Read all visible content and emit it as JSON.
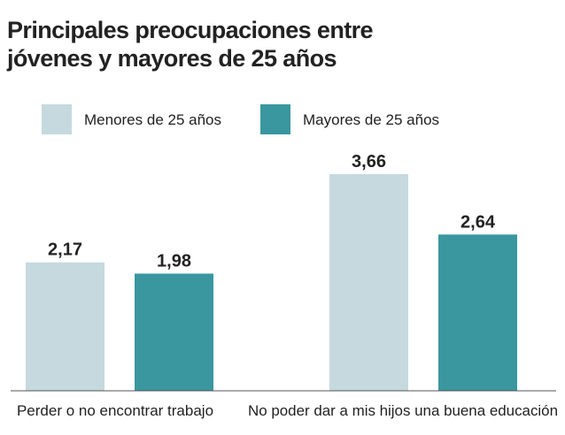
{
  "title_lines": [
    "Principales preocupaciones entre",
    "jóvenes y mayores de 25 años"
  ],
  "colors": {
    "menores": "#c5d9df",
    "mayores": "#3a969f",
    "axis": "#555555"
  },
  "chart_data": {
    "type": "bar",
    "title": "Principales preocupaciones entre jóvenes y mayores de 25 años",
    "categories": [
      "Perder o no encontrar trabajo",
      "No poder dar a mis hijos una buena educación"
    ],
    "series": [
      {
        "name": "Menores de 25 años",
        "values": [
          2.17,
          3.66
        ],
        "labels": [
          "2,17",
          "3,66"
        ]
      },
      {
        "name": "Mayores de 25 años",
        "values": [
          1.98,
          2.64
        ],
        "labels": [
          "1,98",
          "2,64"
        ]
      }
    ],
    "ylim": [
      0,
      4
    ],
    "grid": false,
    "legend_position": "top-left"
  }
}
